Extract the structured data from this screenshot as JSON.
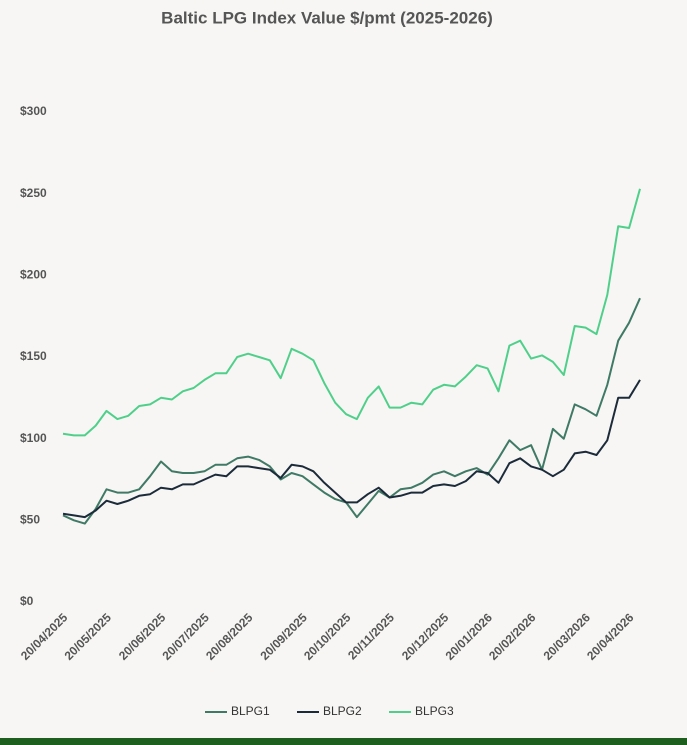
{
  "chart_data": {
    "type": "line",
    "title": "Baltic LPG Index Value $/pmt (2025-2026)",
    "categories": [
      "20/04/2025",
      null,
      null,
      null,
      "20/05/2025",
      null,
      null,
      null,
      null,
      "20/06/2025",
      null,
      null,
      null,
      "20/07/2025",
      null,
      null,
      null,
      "20/08/2025",
      null,
      null,
      null,
      null,
      "20/09/2025",
      null,
      null,
      null,
      "20/10/2025",
      null,
      null,
      null,
      "20/11/2025",
      null,
      null,
      null,
      null,
      "20/12/2025",
      null,
      null,
      null,
      "20/01/2026",
      null,
      null,
      null,
      "20/02/2026",
      null,
      null,
      null,
      null,
      "20/03/2026",
      null,
      null,
      null,
      "20/04/2026",
      null
    ],
    "series": [
      {
        "name": "BLPG1",
        "color": "#3f7a66",
        "values": [
          53,
          50,
          48,
          57,
          69,
          67,
          67,
          69,
          77,
          86,
          80,
          79,
          79,
          80,
          84,
          84,
          88,
          89,
          87,
          83,
          75,
          79,
          77,
          72,
          67,
          63,
          61,
          52,
          60,
          68,
          64,
          69,
          70,
          73,
          78,
          80,
          77,
          80,
          82,
          78,
          88,
          99,
          93,
          96,
          81,
          106,
          100,
          121,
          118,
          114,
          133,
          160,
          171,
          186
        ]
      },
      {
        "name": "BLPG2",
        "color": "#1c2b3a",
        "values": [
          54,
          53,
          52,
          56,
          62,
          60,
          62,
          65,
          66,
          70,
          69,
          72,
          72,
          75,
          78,
          77,
          83,
          83,
          82,
          81,
          76,
          84,
          83,
          80,
          73,
          67,
          61,
          61,
          66,
          70,
          64,
          65,
          67,
          67,
          71,
          72,
          71,
          74,
          80,
          79,
          73,
          85,
          88,
          83,
          81,
          77,
          81,
          91,
          92,
          90,
          99,
          125,
          125,
          136
        ]
      },
      {
        "name": "BLPG3",
        "color": "#4fd08a",
        "values": [
          103,
          102,
          102,
          108,
          117,
          112,
          114,
          120,
          121,
          125,
          124,
          129,
          131,
          136,
          140,
          140,
          150,
          152,
          150,
          148,
          137,
          155,
          152,
          148,
          134,
          122,
          115,
          112,
          125,
          132,
          119,
          119,
          122,
          121,
          130,
          133,
          132,
          138,
          145,
          143,
          129,
          157,
          160,
          149,
          151,
          147,
          139,
          169,
          168,
          164,
          188,
          230,
          229,
          253
        ]
      }
    ],
    "ylim": [
      0,
      300
    ],
    "yticks": [
      {
        "value": 0,
        "label": "$0"
      },
      {
        "value": 50,
        "label": "$50"
      },
      {
        "value": 100,
        "label": "$100"
      },
      {
        "value": 150,
        "label": "$150"
      },
      {
        "value": 200,
        "label": "$200"
      },
      {
        "value": 250,
        "label": "$250"
      },
      {
        "value": 300,
        "label": "$300"
      }
    ],
    "grid": false,
    "legend": "bottom"
  }
}
